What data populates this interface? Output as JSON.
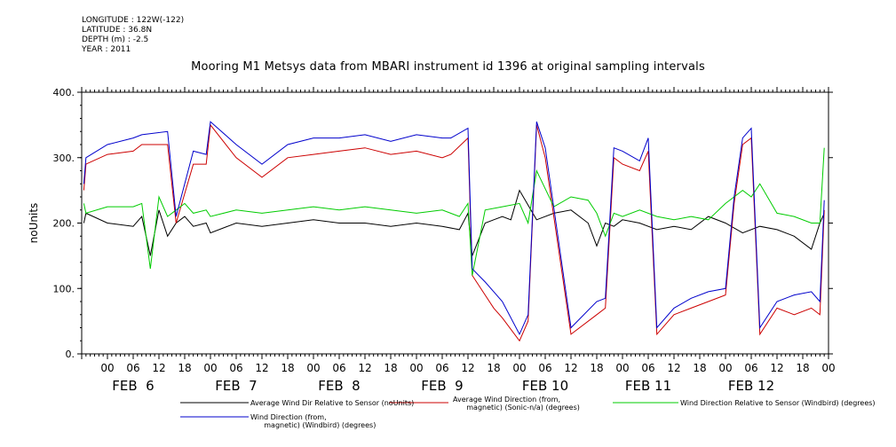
{
  "header": {
    "longitude": "LONGITUDE : 122W(-122)",
    "latitude": "LATITUDE : 36.8N",
    "depth": "DEPTH (m) : -2.5",
    "year": "YEAR : 2011"
  },
  "chart_data": {
    "type": "line",
    "title": "Mooring M1 Metsys data from MBARI instrument id 1396 at original sampling intervals",
    "ylabel": "noUnits",
    "xlabel": "",
    "ylim": [
      0,
      400
    ],
    "xlim_hours": [
      -6,
      168
    ],
    "y_ticks": [
      "0.",
      "100.",
      "200.",
      "300.",
      "400."
    ],
    "hour_tick_labels": [
      "00",
      "06",
      "12",
      "18"
    ],
    "day_labels": [
      "FEB  6",
      "FEB  7",
      "FEB  8",
      "FEB  9",
      "FEB 10",
      "FEB 11",
      "FEB 12"
    ],
    "series": [
      {
        "name": "Average Wind Dir Relative to Sensor (noUnits)",
        "color": "#000000",
        "x": [
          -5.5,
          -5,
          0,
          6,
          8,
          10,
          12,
          14,
          16,
          18,
          20,
          23,
          24,
          30,
          36,
          42,
          48,
          54,
          60,
          66,
          72,
          78,
          82,
          84,
          85,
          88,
          90,
          92,
          94,
          96,
          100,
          104,
          108,
          112,
          114,
          116,
          118,
          120,
          124,
          128,
          132,
          136,
          140,
          144,
          148,
          152,
          156,
          160,
          164,
          166,
          167
        ],
        "values": [
          200,
          215,
          200,
          195,
          210,
          150,
          220,
          180,
          200,
          210,
          195,
          200,
          185,
          200,
          195,
          200,
          205,
          200,
          200,
          195,
          200,
          195,
          190,
          215,
          150,
          200,
          205,
          210,
          205,
          250,
          205,
          215,
          220,
          200,
          165,
          200,
          195,
          205,
          200,
          190,
          195,
          190,
          210,
          200,
          185,
          195,
          190,
          180,
          160,
          200,
          215
        ]
      },
      {
        "name": "Average Wind Direction (from, magnetic) (Sonic-n/a) (degrees)",
        "color": "#cc0000",
        "x": [
          -5.5,
          -5,
          0,
          6,
          8,
          14,
          16,
          20,
          23,
          24,
          30,
          36,
          42,
          48,
          54,
          60,
          66,
          72,
          78,
          80,
          84,
          85,
          88,
          90,
          92,
          96,
          98,
          100,
          102,
          108,
          114,
          116,
          118,
          120,
          124,
          126,
          128,
          132,
          136,
          140,
          144,
          146,
          148,
          150,
          152,
          156,
          160,
          164,
          166,
          167
        ],
        "values": [
          250,
          290,
          305,
          310,
          320,
          320,
          200,
          290,
          290,
          350,
          300,
          270,
          300,
          305,
          310,
          315,
          305,
          310,
          300,
          305,
          330,
          120,
          90,
          70,
          55,
          20,
          50,
          350,
          300,
          30,
          60,
          70,
          300,
          290,
          280,
          310,
          30,
          60,
          70,
          80,
          90,
          230,
          320,
          330,
          30,
          70,
          60,
          70,
          60,
          220
        ]
      },
      {
        "name": "Wind Direction Relative to Sensor (Windbird) (degrees)",
        "color": "#00cc00",
        "x": [
          -5.5,
          -5,
          0,
          6,
          8,
          10,
          12,
          14,
          16,
          18,
          20,
          23,
          24,
          30,
          36,
          42,
          48,
          54,
          60,
          66,
          72,
          78,
          82,
          84,
          85,
          88,
          92,
          96,
          98,
          100,
          104,
          108,
          112,
          114,
          116,
          118,
          120,
          124,
          128,
          132,
          136,
          140,
          144,
          146,
          148,
          150,
          152,
          156,
          160,
          164,
          166,
          167
        ],
        "values": [
          230,
          215,
          225,
          225,
          230,
          130,
          240,
          210,
          220,
          230,
          215,
          220,
          210,
          220,
          215,
          220,
          225,
          220,
          225,
          220,
          215,
          220,
          210,
          230,
          120,
          220,
          225,
          230,
          200,
          280,
          225,
          240,
          235,
          215,
          180,
          215,
          210,
          220,
          210,
          205,
          210,
          205,
          230,
          240,
          250,
          240,
          260,
          215,
          210,
          200,
          200,
          315
        ]
      },
      {
        "name": "Wind Direction (from, magnetic) (Windbird) (degrees)",
        "color": "#0000cc",
        "x": [
          -5.5,
          -5,
          0,
          6,
          8,
          14,
          16,
          20,
          23,
          24,
          30,
          36,
          42,
          48,
          54,
          60,
          66,
          72,
          78,
          80,
          84,
          85,
          88,
          90,
          92,
          96,
          98,
          100,
          102,
          108,
          114,
          116,
          118,
          120,
          124,
          126,
          128,
          132,
          136,
          140,
          144,
          146,
          148,
          150,
          152,
          156,
          160,
          164,
          166,
          167
        ],
        "values": [
          260,
          300,
          320,
          330,
          335,
          340,
          210,
          310,
          305,
          355,
          320,
          290,
          320,
          330,
          330,
          335,
          325,
          335,
          330,
          330,
          345,
          130,
          110,
          95,
          80,
          30,
          60,
          355,
          315,
          40,
          80,
          85,
          315,
          310,
          295,
          330,
          40,
          70,
          85,
          95,
          100,
          240,
          330,
          345,
          40,
          80,
          90,
          95,
          80,
          235
        ]
      }
    ],
    "legend": [
      "Average Wind Dir Relative to Sensor (noUnits)",
      "Average Wind Direction (from,\n      magnetic) (Sonic-n/a) (degrees)",
      "Wind Direction Relative to Sensor (Windbird) (degrees)",
      "Wind Direction (from,\n      magnetic) (Windbird) (degrees)"
    ],
    "grid": false
  }
}
